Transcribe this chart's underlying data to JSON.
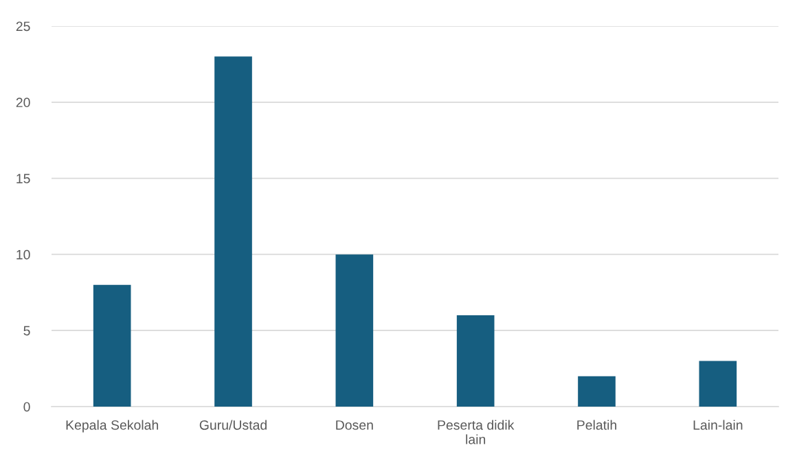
{
  "chart_data": {
    "type": "bar",
    "categories": [
      "Kepala Sekolah",
      "Guru/Ustad",
      "Dosen",
      "Peserta didik lain",
      "Pelatih",
      "Lain-lain"
    ],
    "values": [
      8,
      23,
      10,
      6,
      2,
      3
    ],
    "color": "#165e80",
    "ylim": [
      0,
      25
    ],
    "yticks": [
      0,
      5,
      10,
      15,
      20,
      25
    ],
    "grid": "y"
  }
}
